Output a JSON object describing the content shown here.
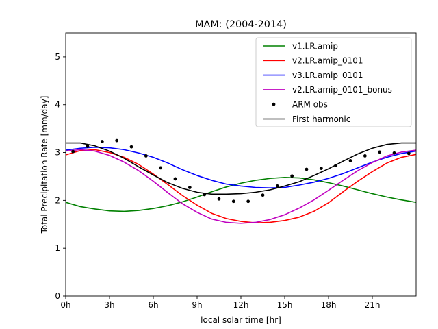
{
  "chart_data": {
    "type": "line",
    "title": "MAM: (2004-2014)",
    "xlabel": "local solar time [hr]",
    "ylabel": "Total Precipitation Rate [mm/day]",
    "xlim": [
      0,
      24
    ],
    "ylim": [
      0,
      5.5
    ],
    "xticks": [
      {
        "value": 0,
        "label": "0h"
      },
      {
        "value": 3,
        "label": "3h"
      },
      {
        "value": 6,
        "label": "6h"
      },
      {
        "value": 9,
        "label": "9h"
      },
      {
        "value": 12,
        "label": "12h"
      },
      {
        "value": 15,
        "label": "15h"
      },
      {
        "value": 18,
        "label": "18h"
      },
      {
        "value": 21,
        "label": "21h"
      }
    ],
    "yticks": [
      {
        "value": 0,
        "label": "0"
      },
      {
        "value": 1,
        "label": "1"
      },
      {
        "value": 2,
        "label": "2"
      },
      {
        "value": 3,
        "label": "3"
      },
      {
        "value": 4,
        "label": "4"
      },
      {
        "value": 5,
        "label": "5"
      }
    ],
    "grid": false,
    "legend_position": "top-right",
    "x": [
      0,
      1,
      2,
      3,
      4,
      5,
      6,
      7,
      8,
      9,
      10,
      11,
      12,
      13,
      14,
      15,
      16,
      17,
      18,
      19,
      20,
      21,
      22,
      23,
      24
    ],
    "series": [
      {
        "name": "v1.LR.amip",
        "color": "#008000",
        "style": "line",
        "values": [
          1.96,
          1.87,
          1.82,
          1.78,
          1.77,
          1.79,
          1.83,
          1.89,
          1.97,
          2.07,
          2.18,
          2.28,
          2.36,
          2.42,
          2.46,
          2.48,
          2.47,
          2.43,
          2.37,
          2.3,
          2.22,
          2.14,
          2.07,
          2.01,
          1.96
        ]
      },
      {
        "name": "v2.LR.amip_0101",
        "color": "#ff0000",
        "style": "line",
        "values": [
          2.95,
          3.04,
          3.06,
          3.0,
          2.9,
          2.75,
          2.55,
          2.33,
          2.1,
          1.9,
          1.73,
          1.62,
          1.56,
          1.53,
          1.54,
          1.58,
          1.65,
          1.77,
          1.95,
          2.18,
          2.4,
          2.6,
          2.78,
          2.9,
          2.96
        ]
      },
      {
        "name": "v3.LR.amip_0101",
        "color": "#0000ff",
        "style": "line",
        "values": [
          3.05,
          3.09,
          3.11,
          3.1,
          3.06,
          2.99,
          2.9,
          2.78,
          2.64,
          2.52,
          2.42,
          2.34,
          2.3,
          2.27,
          2.26,
          2.27,
          2.32,
          2.38,
          2.46,
          2.56,
          2.68,
          2.8,
          2.9,
          2.98,
          3.03
        ]
      },
      {
        "name": "v2.LR.amip_0101_bonus",
        "color": "#bf00bf",
        "style": "line",
        "values": [
          3.03,
          3.06,
          3.03,
          2.94,
          2.8,
          2.62,
          2.4,
          2.16,
          1.93,
          1.75,
          1.61,
          1.54,
          1.52,
          1.54,
          1.6,
          1.7,
          1.84,
          2.01,
          2.21,
          2.42,
          2.62,
          2.79,
          2.93,
          3.01,
          3.05
        ]
      },
      {
        "name": "ARM obs",
        "color": "#000000",
        "style": "points",
        "x": [
          0.5,
          1.5,
          2.5,
          3.5,
          4.5,
          5.5,
          6.5,
          7.5,
          8.5,
          9.5,
          10.5,
          11.5,
          12.5,
          13.5,
          14.5,
          15.5,
          16.5,
          17.5,
          18.5,
          19.5,
          20.5,
          21.5,
          22.5,
          23.5
        ],
        "values": [
          3.02,
          3.13,
          3.23,
          3.25,
          3.12,
          2.93,
          2.68,
          2.45,
          2.27,
          2.12,
          2.03,
          1.98,
          1.98,
          2.11,
          2.3,
          2.51,
          2.65,
          2.67,
          2.73,
          2.83,
          2.93,
          3.01,
          2.99,
          2.98
        ]
      },
      {
        "name": "First harmonic",
        "color": "#000000",
        "style": "line",
        "values": [
          3.2,
          3.2,
          3.14,
          3.03,
          2.88,
          2.7,
          2.53,
          2.37,
          2.25,
          2.17,
          2.13,
          2.13,
          2.14,
          2.17,
          2.22,
          2.3,
          2.39,
          2.52,
          2.66,
          2.82,
          2.97,
          3.09,
          3.17,
          3.2,
          3.2
        ]
      }
    ]
  }
}
